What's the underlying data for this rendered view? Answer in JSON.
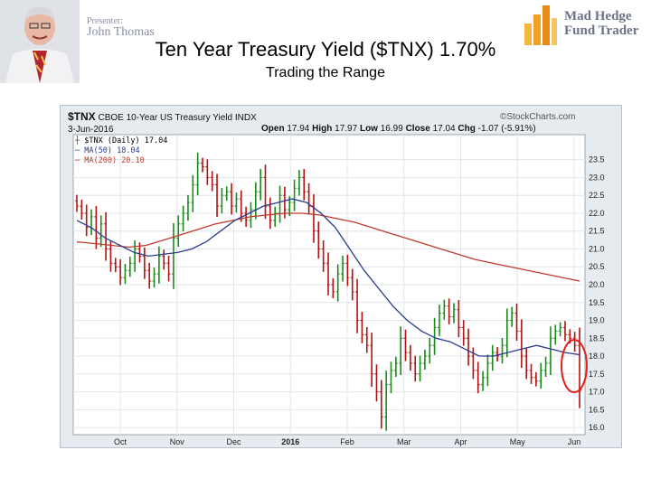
{
  "presenter": {
    "label": "Presenter:",
    "name": "John Thomas"
  },
  "logo": {
    "line1": "Mad Hedge",
    "line2": "Fund Trader"
  },
  "slide": {
    "title": "Ten Year Treasury Yield ($TNX) 1.70%",
    "subtitle": "Trading the Range"
  },
  "chart_header": {
    "symbol": "$TNX",
    "description": "CBOE 10-Year US Treasury Yield",
    "exchange": "INDX",
    "source": "©StockCharts.com",
    "date": "3-Jun-2016",
    "open_label": "Open",
    "open": "17.94",
    "high_label": "High",
    "high": "17.97",
    "low_label": "Low",
    "low": "16.99",
    "close_label": "Close",
    "close": "17.04",
    "change_label": "Chg",
    "change": "-1.07 (-5.91%)"
  },
  "legend": {
    "price": "$TNX (Daily) 17.04",
    "ma50": "MA(50) 18.04",
    "ma200": "MA(200) 20.10"
  },
  "colors": {
    "up": "#1a8c1a",
    "down": "#b31212",
    "ma50": "#2a3a8f",
    "ma200": "#c0392b",
    "highlight": "#e0201b"
  },
  "chart_data": {
    "type": "line",
    "title": "",
    "xlabel": "",
    "ylabel": "",
    "ylim": [
      15.8,
      24.2
    ],
    "y_ticks": [
      "23.5",
      "23.0",
      "22.5",
      "22.0",
      "21.5",
      "21.0",
      "20.5",
      "20.0",
      "19.5",
      "19.0",
      "18.5",
      "18.0",
      "17.5",
      "17.0",
      "16.5",
      "16.0"
    ],
    "x_ticks": [
      "Oct",
      "Nov",
      "Dec",
      "2016",
      "Feb",
      "Mar",
      "Apr",
      "May",
      "Jun"
    ],
    "x_ticks_bold": [
      false,
      false,
      false,
      true,
      false,
      false,
      false,
      false,
      false
    ],
    "series": [
      {
        "name": "$TNX (Daily) 17.04",
        "values": [
          22.2,
          22.0,
          21.6,
          21.9,
          21.3,
          21.7,
          21.0,
          20.6,
          20.5,
          20.2,
          20.4,
          20.6,
          21.0,
          20.8,
          20.4,
          20.1,
          20.3,
          20.8,
          20.6,
          20.3,
          21.3,
          21.7,
          22.0,
          22.3,
          22.8,
          23.4,
          23.3,
          23.0,
          22.8,
          22.2,
          22.5,
          22.6,
          22.2,
          22.4,
          22.0,
          21.8,
          22.1,
          22.6,
          23.0,
          22.2,
          21.8,
          22.0,
          22.5,
          22.1,
          22.3,
          22.7,
          23.0,
          22.6,
          22.2,
          21.5,
          21.0,
          20.6,
          20.0,
          19.8,
          20.3,
          20.6,
          20.2,
          19.8,
          19.0,
          18.6,
          18.3,
          17.5,
          17.0,
          16.3,
          17.2,
          17.6,
          17.8,
          18.5,
          18.1,
          17.8,
          17.5,
          17.8,
          18.0,
          18.3,
          18.8,
          19.2,
          19.4,
          19.1,
          19.3,
          18.8,
          18.5,
          18.0,
          17.6,
          17.2,
          17.4,
          17.8,
          18.1,
          18.0,
          18.3,
          19.0,
          19.2,
          18.7,
          18.0,
          17.6,
          17.4,
          17.3,
          17.6,
          17.8,
          18.5,
          18.7,
          18.8,
          18.6,
          18.5,
          18.3,
          17.04
        ]
      },
      {
        "name": "MA(50) 18.04",
        "values": [
          21.8,
          21.6,
          21.3,
          21.1,
          20.9,
          20.8,
          20.85,
          20.9,
          21.0,
          21.2,
          21.5,
          21.8,
          22.0,
          22.2,
          22.3,
          22.4,
          22.3,
          22.0,
          21.6,
          21.0,
          20.4,
          19.9,
          19.4,
          19.0,
          18.7,
          18.5,
          18.4,
          18.2,
          18.0,
          18.0,
          18.1,
          18.2,
          18.3,
          18.2,
          18.1,
          18.04
        ]
      },
      {
        "name": "MA(200) 20.10",
        "values": [
          21.2,
          21.15,
          21.1,
          21.05,
          21.1,
          21.25,
          21.4,
          21.55,
          21.7,
          21.8,
          21.9,
          21.95,
          22.0,
          22.0,
          21.95,
          21.85,
          21.75,
          21.6,
          21.45,
          21.3,
          21.15,
          21.0,
          20.85,
          20.7,
          20.6,
          20.5,
          20.4,
          20.3,
          20.2,
          20.1
        ]
      }
    ],
    "annotations": [
      "circle around final bar (Jun)"
    ]
  }
}
